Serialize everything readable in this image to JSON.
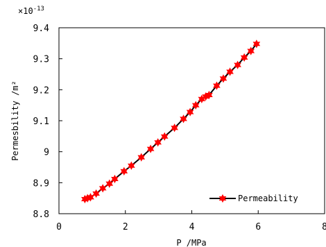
{
  "chart_data": {
    "type": "line",
    "title": "",
    "xlabel": "P /MPa",
    "ylabel": "Permesbility /m²",
    "y_multiplier": "×10",
    "y_multiplier_exp": "-13",
    "xlim": [
      0,
      8
    ],
    "ylim": [
      8.8,
      9.4
    ],
    "xticks": [
      0,
      2,
      4,
      6,
      8
    ],
    "xtick_labels": [
      "0",
      "2",
      "4",
      "6",
      "8"
    ],
    "yticks": [
      8.8,
      8.9,
      9.0,
      9.1,
      9.2,
      9.3,
      9.4
    ],
    "ytick_labels": [
      "8.8",
      "8.9",
      "9",
      "9.1",
      "9.2",
      "9.3",
      "9.4"
    ],
    "grid": false,
    "legend_position": "bottom-right",
    "series": [
      {
        "name": "Permeability",
        "color": "#ff0000",
        "line_color": "#000000",
        "marker": "star",
        "x": [
          0.78,
          0.86,
          0.95,
          1.12,
          1.32,
          1.52,
          1.68,
          1.96,
          2.18,
          2.48,
          2.76,
          2.98,
          3.18,
          3.48,
          3.75,
          3.95,
          4.12,
          4.3,
          4.42,
          4.52,
          4.75,
          4.95,
          5.15,
          5.38,
          5.58,
          5.78,
          5.95
        ],
        "y": [
          8.847,
          8.85,
          8.853,
          8.865,
          8.882,
          8.897,
          8.912,
          8.937,
          8.955,
          8.982,
          9.009,
          9.03,
          9.049,
          9.077,
          9.106,
          9.128,
          9.15,
          9.17,
          9.178,
          9.183,
          9.213,
          9.236,
          9.258,
          9.28,
          9.304,
          9.325,
          9.348
        ]
      }
    ]
  }
}
